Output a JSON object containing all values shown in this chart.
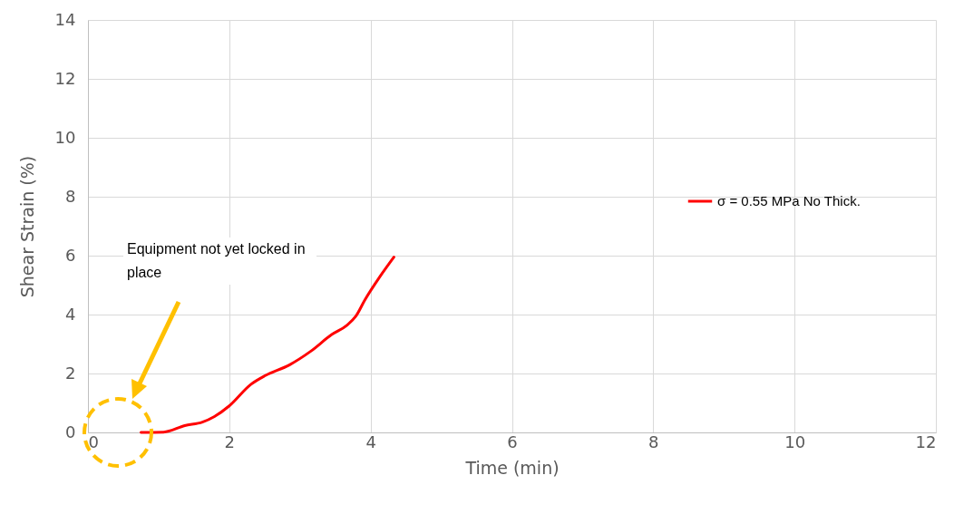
{
  "chart_data": {
    "type": "line",
    "xlabel": "Time (min)",
    "ylabel": "Shear Strain (%)",
    "x": [
      0.75,
      1.07,
      1.37,
      1.62,
      1.79,
      2.0,
      2.3,
      2.51,
      2.85,
      3.15,
      3.45,
      3.66,
      3.79,
      3.92,
      4.13,
      4.33
    ],
    "series": [
      {
        "name": "σ = 0.55 MPa No Thick.",
        "color": "#ff0000",
        "values": [
          0,
          0.01,
          0.23,
          0.35,
          0.54,
          0.9,
          1.62,
          1.93,
          2.29,
          2.75,
          3.32,
          3.63,
          3.94,
          4.5,
          5.28,
          5.95
        ]
      }
    ],
    "xlim": [
      0,
      12
    ],
    "xticks": [
      0,
      2,
      4,
      6,
      8,
      10,
      12
    ],
    "ylim": [
      0,
      14
    ],
    "yticks": [
      0,
      2,
      4,
      6,
      8,
      10,
      12,
      14
    ],
    "grid": true,
    "legend": "right",
    "annotations": [
      "Equipment not yet locked in place"
    ]
  }
}
